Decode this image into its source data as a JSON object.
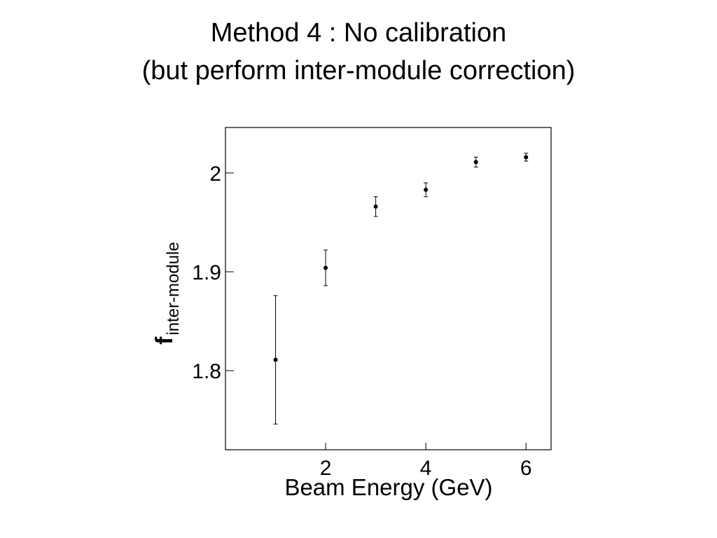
{
  "title": {
    "line1": "Method 4 : No calibration",
    "line2": "(but perform inter-module correction)"
  },
  "chart_data": {
    "type": "scatter",
    "xlabel": "Beam Energy (GeV)",
    "ylabel": {
      "main": "f",
      "subscript": "inter-module"
    },
    "xlim": [
      0,
      6.5
    ],
    "ylim": [
      1.72,
      2.046
    ],
    "xticks": [
      2,
      4,
      6
    ],
    "xtick_labels": [
      "2",
      "4",
      "6"
    ],
    "yticks": [
      1.8,
      1.9,
      2.0
    ],
    "ytick_labels": [
      "1.8",
      "1.9",
      "2"
    ],
    "grid": false,
    "series": [
      {
        "points": [
          {
            "x": 1,
            "y": 1.811,
            "err": 0.065
          },
          {
            "x": 2,
            "y": 1.904,
            "err": 0.018
          },
          {
            "x": 3,
            "y": 1.966,
            "err": 0.01
          },
          {
            "x": 4,
            "y": 1.983,
            "err": 0.007
          },
          {
            "x": 5,
            "y": 2.011,
            "err": 0.005
          },
          {
            "x": 6,
            "y": 2.016,
            "err": 0.004
          }
        ]
      }
    ]
  }
}
